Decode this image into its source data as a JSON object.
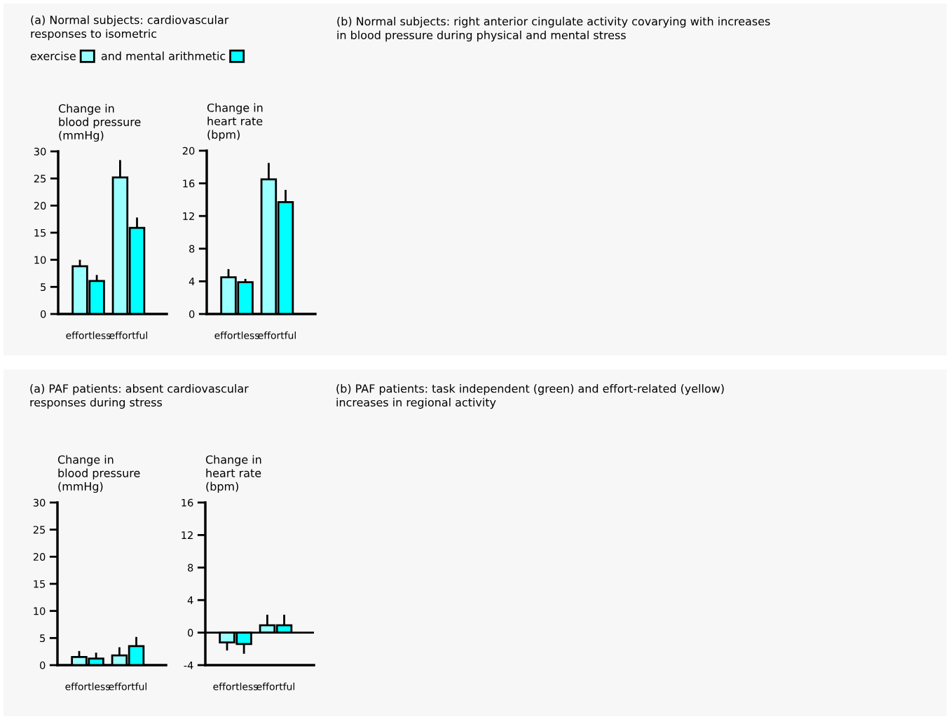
{
  "chart_data": [
    {
      "type": "bar",
      "title": "(a) Normal subjects: cardiovascular\nresponses to isometric",
      "ylabel": "Change in\nblood pressure\n(mmHg)",
      "categories": [
        "effortless",
        "effortful"
      ],
      "legend": "top right",
      "series": [
        {
          "name": "exercise",
          "color": "#99ffff",
          "values": [
            8.8,
            25.2
          ],
          "errors": [
            [
              8.8,
              10.0
            ],
            [
              25.2,
              28.4
            ]
          ]
        },
        {
          "name": "and mental arithmetic",
          "color": "#00ffff",
          "values": [
            6.1,
            15.9
          ],
          "errors": [
            [
              6.1,
              7.2
            ],
            [
              15.9,
              17.8
            ]
          ]
        }
      ],
      "ylim": [
        0,
        30
      ],
      "yticks": [
        0,
        5,
        10,
        15,
        20,
        25,
        30
      ],
      "grid": false
    },
    {
      "type": "bar",
      "ylabel": "Change in\nheart rate\n(bpm)",
      "categories": [
        "effortless",
        "effortful"
      ],
      "series": [
        {
          "color": "#99ffff",
          "values": [
            4.5,
            16.5
          ],
          "errors": [
            [
              4.5,
              5.5
            ],
            [
              16.5,
              18.5
            ]
          ]
        },
        {
          "color": "#00ffff",
          "values": [
            3.9,
            13.7
          ],
          "errors": [
            [
              3.9,
              4.3
            ],
            [
              13.7,
              15.2
            ]
          ]
        }
      ],
      "ylim": [
        0,
        20
      ],
      "yticks": [
        0,
        4,
        8,
        12,
        16,
        20
      ],
      "grid": false
    },
    {
      "type": "other",
      "title": "(b) Normal subjects: right anterior cingulate activity covarying with increases\nin blood pressure during physical and mental stress"
    },
    {
      "type": "bar",
      "title": "(a) PAF patients: absent cardiovascular\nresponses during stress",
      "ylabel": "Change in\nblood pressure\n(mmHg)",
      "categories": [
        "effortless",
        "effortful"
      ],
      "series": [
        {
          "color": "#99ffff",
          "values": [
            1.5,
            1.8
          ],
          "errors": [
            [
              1.5,
              2.6
            ],
            [
              1.8,
              3.3
            ]
          ]
        },
        {
          "color": "#00ffff",
          "values": [
            1.2,
            3.5
          ],
          "errors": [
            [
              1.2,
              2.3
            ],
            [
              3.5,
              5.2
            ]
          ]
        }
      ],
      "ylim": [
        0,
        30
      ],
      "yticks": [
        0,
        5,
        10,
        15,
        20,
        25,
        30
      ],
      "grid": false
    },
    {
      "type": "bar",
      "ylabel": "Change in\nheart rate\n(bpm)",
      "categories": [
        "effortless",
        "effortful"
      ],
      "series": [
        {
          "color": "#99ffff",
          "values": [
            -1.2,
            0.9
          ],
          "errors": [
            [
              -2.2,
              -1.2
            ],
            [
              0.9,
              2.2
            ]
          ]
        },
        {
          "color": "#00ffff",
          "values": [
            -1.4,
            0.9
          ],
          "errors": [
            [
              -2.6,
              -1.4
            ],
            [
              0.9,
              2.2
            ]
          ]
        }
      ],
      "ylim": [
        -4,
        16
      ],
      "yticks": [
        -4,
        0,
        4,
        8,
        12,
        16
      ],
      "grid": false,
      "ref_lines": [
        {
          "axis": "y",
          "value": 0
        }
      ]
    },
    {
      "type": "other",
      "title": "(b) PAF patients: task independent (green) and effort-related (yellow)\nincreases in regional activity"
    }
  ]
}
